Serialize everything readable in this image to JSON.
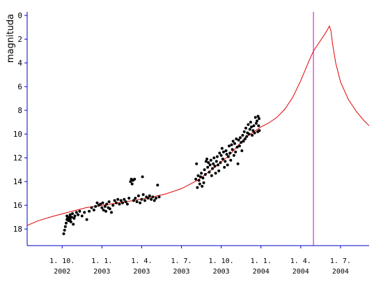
{
  "chart_data": {
    "type": "scatter",
    "title": "",
    "xlabel": "",
    "ylabel": "magnituda",
    "y_inverted": true,
    "ylim": [
      19.4,
      -0.3
    ],
    "xlim": [
      2002.53,
      2004.68
    ],
    "grid": false,
    "legend": "none",
    "colors": {
      "axes": "#0000cc",
      "points": "#000000",
      "curve": "#e00000",
      "marker_line": "#cc00cc"
    },
    "y_ticks": [
      0,
      2,
      4,
      6,
      8,
      10,
      12,
      14,
      16,
      18
    ],
    "x_ticks": [
      {
        "x": 2002.75,
        "line1": "1. 10.",
        "line2": "2002"
      },
      {
        "x": 2003.0,
        "line1": "1. 1.",
        "line2": "2003"
      },
      {
        "x": 2003.25,
        "line1": "1. 4.",
        "line2": "2003"
      },
      {
        "x": 2003.5,
        "line1": "1. 7.",
        "line2": "2003"
      },
      {
        "x": 2003.75,
        "line1": "1. 10.",
        "line2": "2003"
      },
      {
        "x": 2004.0,
        "line1": "1. 1.",
        "line2": "2004"
      },
      {
        "x": 2004.25,
        "line1": "1. 4.",
        "line2": "2004"
      },
      {
        "x": 2004.5,
        "line1": "1. 7.",
        "line2": "2004"
      }
    ],
    "vertical_marker_x": 2004.33,
    "series": [
      {
        "kind": "points",
        "values": [
          [
            2002.76,
            18.4
          ],
          [
            2002.765,
            18.1
          ],
          [
            2002.77,
            17.8
          ],
          [
            2002.775,
            17.5
          ],
          [
            2002.78,
            17.2
          ],
          [
            2002.78,
            16.9
          ],
          [
            2002.785,
            17.1
          ],
          [
            2002.79,
            17.3
          ],
          [
            2002.795,
            17.0
          ],
          [
            2002.8,
            16.8
          ],
          [
            2002.8,
            17.2
          ],
          [
            2002.805,
            17.4
          ],
          [
            2002.81,
            17.0
          ],
          [
            2002.815,
            16.7
          ],
          [
            2002.82,
            17.6
          ],
          [
            2002.825,
            17.1
          ],
          [
            2002.83,
            16.9
          ],
          [
            2002.84,
            16.6
          ],
          [
            2002.85,
            16.8
          ],
          [
            2002.86,
            16.5
          ],
          [
            2002.875,
            16.9
          ],
          [
            2002.89,
            16.6
          ],
          [
            2002.905,
            17.2
          ],
          [
            2002.92,
            16.5
          ],
          [
            2002.935,
            16.2
          ],
          [
            2002.95,
            16.4
          ],
          [
            2002.96,
            16.1
          ],
          [
            2002.97,
            15.8
          ],
          [
            2002.98,
            16.0
          ],
          [
            2002.99,
            15.9
          ],
          [
            2003.0,
            16.2
          ],
          [
            2003.005,
            15.8
          ],
          [
            2003.01,
            16.4
          ],
          [
            2003.02,
            16.1
          ],
          [
            2003.025,
            16.5
          ],
          [
            2003.03,
            15.9
          ],
          [
            2003.04,
            16.2
          ],
          [
            2003.045,
            15.7
          ],
          [
            2003.05,
            16.3
          ],
          [
            2003.06,
            16.6
          ],
          [
            2003.07,
            16.0
          ],
          [
            2003.08,
            15.6
          ],
          [
            2003.09,
            15.8
          ],
          [
            2003.1,
            15.5
          ],
          [
            2003.11,
            15.9
          ],
          [
            2003.12,
            15.6
          ],
          [
            2003.13,
            15.8
          ],
          [
            2003.14,
            15.5
          ],
          [
            2003.15,
            15.7
          ],
          [
            2003.16,
            15.9
          ],
          [
            2003.17,
            15.4
          ],
          [
            2003.18,
            14.0
          ],
          [
            2003.185,
            13.8
          ],
          [
            2003.19,
            14.2
          ],
          [
            2003.195,
            13.9
          ],
          [
            2003.2,
            15.6
          ],
          [
            2003.205,
            13.8
          ],
          [
            2003.21,
            15.4
          ],
          [
            2003.22,
            15.7
          ],
          [
            2003.23,
            15.2
          ],
          [
            2003.24,
            15.8
          ],
          [
            2003.25,
            15.5
          ],
          [
            2003.255,
            13.6
          ],
          [
            2003.26,
            15.1
          ],
          [
            2003.27,
            15.6
          ],
          [
            2003.28,
            15.3
          ],
          [
            2003.29,
            15.4
          ],
          [
            2003.3,
            15.2
          ],
          [
            2003.31,
            15.5
          ],
          [
            2003.32,
            15.3
          ],
          [
            2003.33,
            15.6
          ],
          [
            2003.34,
            15.4
          ],
          [
            2003.35,
            14.3
          ],
          [
            2003.36,
            15.3
          ],
          [
            2003.59,
            13.8
          ],
          [
            2003.595,
            12.5
          ],
          [
            2003.6,
            14.5
          ],
          [
            2003.605,
            13.5
          ],
          [
            2003.61,
            13.9
          ],
          [
            2003.615,
            14.2
          ],
          [
            2003.62,
            13.6
          ],
          [
            2003.625,
            13.3
          ],
          [
            2003.63,
            14.4
          ],
          [
            2003.635,
            13.7
          ],
          [
            2003.64,
            14.1
          ],
          [
            2003.645,
            13.0
          ],
          [
            2003.65,
            13.4
          ],
          [
            2003.655,
            12.3
          ],
          [
            2003.66,
            12.1
          ],
          [
            2003.665,
            12.8
          ],
          [
            2003.67,
            12.4
          ],
          [
            2003.675,
            13.2
          ],
          [
            2003.68,
            12.6
          ],
          [
            2003.685,
            12.2
          ],
          [
            2003.69,
            13.5
          ],
          [
            2003.695,
            12.9
          ],
          [
            2003.7,
            12.5
          ],
          [
            2003.705,
            12.0
          ],
          [
            2003.71,
            12.7
          ],
          [
            2003.715,
            13.3
          ],
          [
            2003.72,
            12.3
          ],
          [
            2003.725,
            11.9
          ],
          [
            2003.73,
            12.6
          ],
          [
            2003.735,
            13.1
          ],
          [
            2003.74,
            11.6
          ],
          [
            2003.745,
            12.4
          ],
          [
            2003.75,
            11.8
          ],
          [
            2003.755,
            11.2
          ],
          [
            2003.76,
            12.1
          ],
          [
            2003.765,
            11.5
          ],
          [
            2003.77,
            12.8
          ],
          [
            2003.775,
            12.3
          ],
          [
            2003.78,
            11.4
          ],
          [
            2003.785,
            11.7
          ],
          [
            2003.79,
            12.6
          ],
          [
            2003.795,
            11.9
          ],
          [
            2003.8,
            11.0
          ],
          [
            2003.805,
            11.6
          ],
          [
            2003.81,
            12.2
          ],
          [
            2003.815,
            10.9
          ],
          [
            2003.82,
            11.3
          ],
          [
            2003.825,
            10.6
          ],
          [
            2003.83,
            11.8
          ],
          [
            2003.835,
            10.8
          ],
          [
            2003.84,
            11.5
          ],
          [
            2003.845,
            10.4
          ],
          [
            2003.85,
            11.1
          ],
          [
            2003.855,
            12.5
          ],
          [
            2003.86,
            10.5
          ],
          [
            2003.865,
            11.0
          ],
          [
            2003.87,
            10.3
          ],
          [
            2003.875,
            10.7
          ],
          [
            2003.88,
            11.4
          ],
          [
            2003.885,
            10.1
          ],
          [
            2003.89,
            10.6
          ],
          [
            2003.895,
            9.8
          ],
          [
            2003.9,
            10.4
          ],
          [
            2003.905,
            9.5
          ],
          [
            2003.91,
            10.2
          ],
          [
            2003.915,
            9.9
          ],
          [
            2003.92,
            9.2
          ],
          [
            2003.925,
            10.0
          ],
          [
            2003.93,
            9.6
          ],
          [
            2003.935,
            9.0
          ],
          [
            2003.94,
            9.4
          ],
          [
            2003.945,
            10.1
          ],
          [
            2003.95,
            9.7
          ],
          [
            2003.955,
            9.3
          ],
          [
            2003.96,
            9.9
          ],
          [
            2003.965,
            8.6
          ],
          [
            2003.97,
            9.1
          ],
          [
            2003.975,
            8.9
          ],
          [
            2003.98,
            9.8
          ],
          [
            2003.982,
            8.5
          ],
          [
            2003.985,
            9.3
          ],
          [
            2003.988,
            8.7
          ],
          [
            2003.99,
            9.7
          ]
        ]
      },
      {
        "kind": "line",
        "values": [
          [
            2002.53,
            17.7
          ],
          [
            2002.6,
            17.3
          ],
          [
            2002.7,
            16.9
          ],
          [
            2002.8,
            16.55
          ],
          [
            2002.9,
            16.2
          ],
          [
            2003.0,
            16.0
          ],
          [
            2003.1,
            15.8
          ],
          [
            2003.2,
            15.6
          ],
          [
            2003.3,
            15.35
          ],
          [
            2003.4,
            15.05
          ],
          [
            2003.5,
            14.6
          ],
          [
            2003.6,
            13.9
          ],
          [
            2003.7,
            12.9
          ],
          [
            2003.8,
            11.8
          ],
          [
            2003.9,
            10.3
          ],
          [
            2004.0,
            9.4
          ],
          [
            2004.05,
            9.05
          ],
          [
            2004.1,
            8.6
          ],
          [
            2004.15,
            7.9
          ],
          [
            2004.2,
            6.9
          ],
          [
            2004.25,
            5.5
          ],
          [
            2004.3,
            3.9
          ],
          [
            2004.33,
            3.0
          ],
          [
            2004.37,
            2.2
          ],
          [
            2004.4,
            1.6
          ],
          [
            2004.42,
            1.15
          ],
          [
            2004.43,
            0.9
          ],
          [
            2004.44,
            1.3
          ],
          [
            2004.45,
            2.4
          ],
          [
            2004.47,
            4.0
          ],
          [
            2004.5,
            5.6
          ],
          [
            2004.55,
            7.1
          ],
          [
            2004.6,
            8.1
          ],
          [
            2004.65,
            8.9
          ],
          [
            2004.68,
            9.3
          ]
        ]
      }
    ]
  }
}
